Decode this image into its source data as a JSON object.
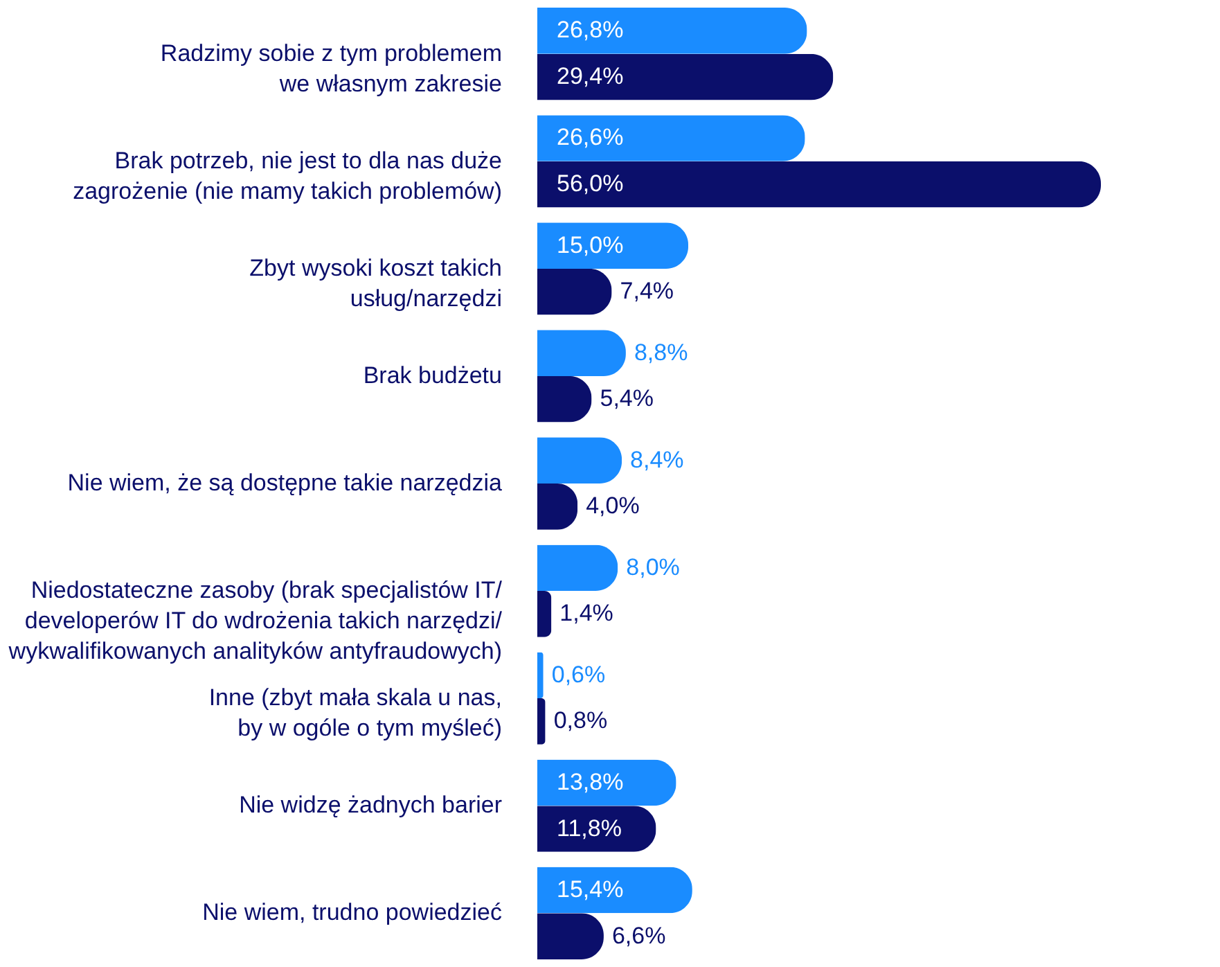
{
  "chart_data": {
    "type": "bar",
    "orientation": "horizontal",
    "categories": [
      "Radzimy sobie z tym problemem\nwe własnym zakresie",
      "Brak potrzeb, nie jest to dla nas duże\nzagrożenie (nie mamy takich problemów)",
      "Zbyt wysoki koszt takich\nusług/narzędzi",
      "Brak budżetu",
      "Nie wiem, że są dostępne takie narzędzia",
      "Niedostateczne zasoby (brak specjalistów IT/\ndeveloperów IT do wdrożenia takich narzędzi/\nwykwalifikowanych analityków antyfraudowych)",
      "Inne (zbyt mała skala u nas,\nby w ogóle o tym myśleć)",
      "Nie widzę żadnych barier",
      "Nie wiem, trudno powiedzieć"
    ],
    "series": [
      {
        "color": "#1a8cff",
        "values": [
          26.8,
          26.6,
          15.0,
          8.8,
          8.4,
          8.0,
          0.6,
          13.8,
          15.4
        ],
        "value_labels": [
          "26,8%",
          "26,6%",
          "15,0%",
          "8,8%",
          "8,4%",
          "8,0%",
          "0,6%",
          "13,8%",
          "15,4%"
        ]
      },
      {
        "color": "#0b0f6b",
        "values": [
          29.4,
          56.0,
          7.4,
          5.4,
          4.0,
          1.4,
          0.8,
          11.8,
          6.6
        ],
        "value_labels": [
          "29,4%",
          "56,0%",
          "7,4%",
          "5,4%",
          "4,0%",
          "1,4%",
          "0,8%",
          "11,8%",
          "6,6%"
        ]
      }
    ],
    "grid": false
  }
}
